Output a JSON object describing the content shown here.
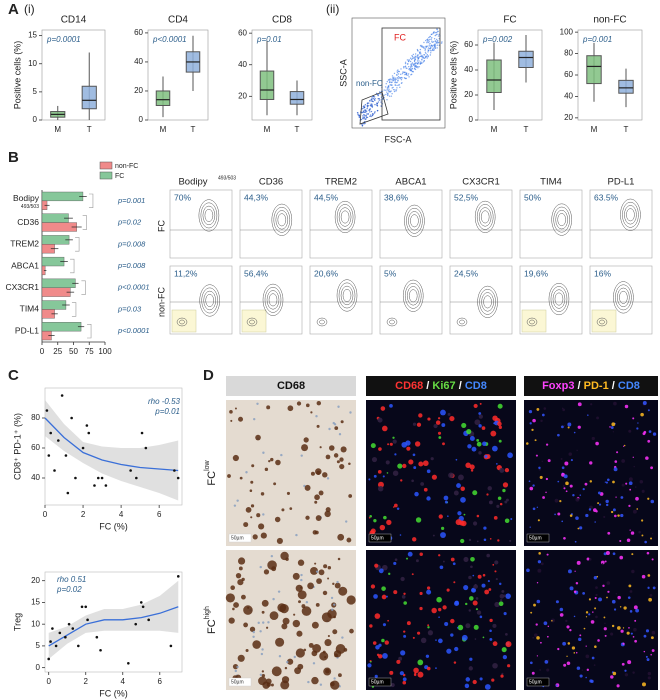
{
  "labels": {
    "A": "A",
    "i": "(i)",
    "ii": "(ii)",
    "B": "B",
    "C": "C",
    "D": "D"
  },
  "flow_gate": {
    "y_label": "SSC-A",
    "x_label": "FSC-A",
    "fc": "FC",
    "non_fc": "non-FC"
  },
  "chart_data": [
    {
      "type": "box",
      "title": "CD14",
      "y_label": "Positive cells (%)",
      "p_value": "p=0.0001",
      "categories": [
        "M",
        "T"
      ],
      "groups": [
        {
          "min": 0,
          "q1": 0.5,
          "median": 1,
          "q3": 1.5,
          "max": 2.5,
          "color": "#7fbf7f"
        },
        {
          "min": 0,
          "q1": 2,
          "median": 3.5,
          "q3": 6,
          "max": 12,
          "color": "#8fb0dc"
        }
      ],
      "ylim": [
        0,
        16
      ],
      "yticks": [
        0,
        5,
        10,
        15
      ]
    },
    {
      "type": "box",
      "title": "CD4",
      "p_value": "p<0.0001",
      "categories": [
        "M",
        "T"
      ],
      "groups": [
        {
          "min": 2,
          "q1": 10,
          "median": 14,
          "q3": 20,
          "max": 30,
          "color": "#7fbf7f"
        },
        {
          "min": 20,
          "q1": 33,
          "median": 40,
          "q3": 47,
          "max": 58,
          "color": "#8fb0dc"
        }
      ],
      "ylim": [
        0,
        62
      ],
      "yticks": [
        0,
        20,
        40,
        60
      ]
    },
    {
      "type": "box",
      "title": "CD8",
      "p_value": "p=0.01",
      "categories": [
        "M",
        "T"
      ],
      "groups": [
        {
          "min": 8,
          "q1": 18,
          "median": 24,
          "q3": 36,
          "max": 55,
          "color": "#7fbf7f"
        },
        {
          "min": 8,
          "q1": 15,
          "median": 18,
          "q3": 23,
          "max": 30,
          "color": "#8fb0dc"
        }
      ],
      "ylim": [
        5,
        62
      ],
      "yticks": [
        20,
        40,
        60
      ]
    },
    {
      "type": "box",
      "title": "FC",
      "y_label": "Positive cells (%)",
      "p_value": "p=0.002",
      "categories": [
        "M",
        "T"
      ],
      "groups": [
        {
          "min": 8,
          "q1": 22,
          "median": 32,
          "q3": 48,
          "max": 62,
          "color": "#7fbf7f"
        },
        {
          "min": 30,
          "q1": 42,
          "median": 50,
          "q3": 55,
          "max": 68,
          "color": "#8fb0dc"
        }
      ],
      "ylim": [
        0,
        72
      ],
      "yticks": [
        0,
        20,
        40,
        60
      ]
    },
    {
      "type": "box",
      "title": "non-FC",
      "p_value": "p=0.001",
      "categories": [
        "M",
        "T"
      ],
      "groups": [
        {
          "min": 35,
          "q1": 52,
          "median": 68,
          "q3": 78,
          "max": 90,
          "color": "#7fbf7f"
        },
        {
          "min": 30,
          "q1": 43,
          "median": 48,
          "q3": 55,
          "max": 66,
          "color": "#8fb0dc"
        }
      ],
      "ylim": [
        18,
        102
      ],
      "yticks": [
        20,
        40,
        60,
        80,
        100
      ]
    },
    {
      "type": "hbar",
      "categories": [
        "Bodipy",
        "CD36",
        "TREM2",
        "ABCA1",
        "CX3CR1",
        "TIM4",
        "PD-L1"
      ],
      "bodipy_sub": "493/503",
      "series": [
        {
          "name": "non-FC",
          "color": "#f08a8a",
          "values": [
            8,
            55,
            20,
            5,
            45,
            20,
            15
          ],
          "errors": [
            4,
            8,
            6,
            2,
            6,
            5,
            5
          ]
        },
        {
          "name": "FC",
          "color": "#86c79a",
          "values": [
            65,
            42,
            43,
            35,
            53,
            38,
            62
          ],
          "errors": [
            6,
            7,
            6,
            6,
            5,
            6,
            5
          ]
        }
      ],
      "p_values": [
        "p=0.001",
        "p=0.02",
        "p=0.008",
        "p=0.008",
        "p<0.0001",
        "p=0.03",
        "p<0.0001"
      ],
      "xlim": [
        0,
        100
      ],
      "xticks": [
        0,
        25,
        50,
        75,
        100
      ]
    },
    {
      "type": "scatter",
      "y_label": "CD8⁺ PD-1⁺ (%)",
      "x_label": "FC (%)",
      "stat": "rho -0.53",
      "p_value": "p=0.01",
      "x": [
        0.1,
        0.2,
        0.3,
        0.5,
        0.7,
        0.9,
        1.1,
        1.2,
        1.4,
        1.6,
        2,
        2.2,
        2.3,
        2.6,
        2.8,
        3,
        3.2,
        4.5,
        4.8,
        5.1,
        5.3,
        6.8,
        7
      ],
      "y": [
        85,
        55,
        70,
        45,
        65,
        95,
        55,
        30,
        80,
        40,
        60,
        75,
        70,
        35,
        40,
        40,
        35,
        45,
        40,
        70,
        60,
        45,
        40
      ],
      "fit": {
        "x": [
          0,
          1,
          2,
          3,
          4,
          5,
          6,
          7
        ],
        "y": [
          80,
          67,
          57,
          52,
          49,
          47,
          46,
          45
        ],
        "lower": [
          68,
          58,
          50,
          43,
          38,
          34,
          30,
          25
        ],
        "upper": [
          92,
          76,
          64,
          61,
          60,
          60,
          62,
          65
        ]
      },
      "xlim": [
        0,
        7.2
      ],
      "xticks": [
        0,
        2,
        4,
        6
      ],
      "ylim": [
        22,
        100
      ],
      "yticks": [
        40,
        60,
        80
      ]
    },
    {
      "type": "scatter",
      "y_label": "Treg",
      "x_label": "FC (%)",
      "stat": "rho 0.51",
      "p_value": "p=0.02",
      "x": [
        0,
        0.1,
        0.2,
        0.4,
        0.6,
        0.9,
        1.1,
        1.3,
        1.6,
        1.8,
        2,
        2.1,
        2.6,
        2.8,
        4.3,
        4.7,
        5,
        5.1,
        5.4,
        6.6,
        7
      ],
      "y": [
        2,
        6,
        9,
        5,
        8,
        7,
        10,
        9,
        5,
        14,
        14,
        11,
        7,
        4,
        1,
        10,
        15,
        14,
        11,
        5,
        21
      ],
      "fit": {
        "x": [
          0,
          1,
          2,
          3,
          4,
          5,
          6,
          7
        ],
        "y": [
          5,
          7.5,
          10,
          11,
          11,
          11.5,
          12.5,
          14
        ],
        "lower": [
          2,
          5.5,
          8,
          8.5,
          8.5,
          8.5,
          8.5,
          8
        ],
        "upper": [
          8,
          9.5,
          12,
          13.5,
          13.5,
          14.5,
          16.5,
          20
        ]
      },
      "xlim": [
        -0.2,
        7.2
      ],
      "xticks": [
        0,
        2,
        4,
        6
      ],
      "ylim": [
        -1,
        22
      ],
      "yticks": [
        0,
        5,
        10,
        15,
        20
      ]
    }
  ],
  "contour_grid": {
    "headers": [
      "Bodipy",
      "CD36",
      "TREM2",
      "ABCA1",
      "CX3CR1",
      "TIM4",
      "PD-L1"
    ],
    "bodipy_sup": "493/503",
    "rows": [
      {
        "label": "FC",
        "percents": [
          "70%",
          "44,3%",
          "44,5%",
          "38,6%",
          "52,5%",
          "50%",
          "63.5%"
        ]
      },
      {
        "label": "non-FC",
        "percents": [
          "11,2%",
          "56,4%",
          "20,6%",
          "5%",
          "24,5%",
          "19,6%",
          "16%"
        ]
      }
    ]
  },
  "images": {
    "columns": [
      [
        {
          "text": "CD68",
          "color": "#111111"
        }
      ],
      [
        {
          "text": "CD68",
          "color": "#ff3333"
        },
        {
          "text": " / ",
          "color": "#ffffff"
        },
        {
          "text": "Ki67",
          "color": "#66dd44"
        },
        {
          "text": " / ",
          "color": "#ffffff"
        },
        {
          "text": "CD8",
          "color": "#4488ff"
        }
      ],
      [
        {
          "text": "Foxp3",
          "color": "#ff44ff"
        },
        {
          "text": " / ",
          "color": "#ffffff"
        },
        {
          "text": "PD-1",
          "color": "#ffbb22"
        },
        {
          "text": " / ",
          "color": "#ffffff"
        },
        {
          "text": "CD8",
          "color": "#4488ff"
        }
      ]
    ],
    "rows": [
      {
        "base": "FC",
        "sup": "low"
      },
      {
        "base": "FC",
        "sup": "high"
      }
    ],
    "scale_bar": "50µm"
  }
}
